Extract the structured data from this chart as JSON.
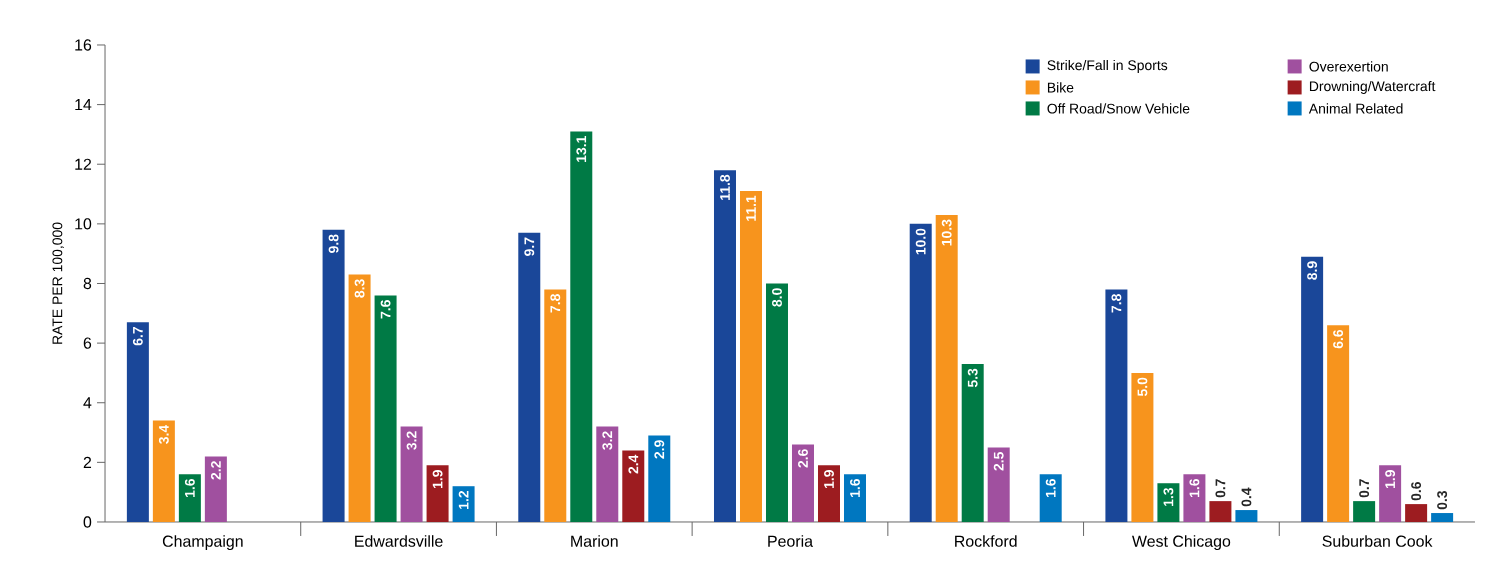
{
  "chart_data": {
    "type": "bar",
    "ylabel": "RATE PER 100,000",
    "categories": [
      "Champaign",
      "Edwardsville",
      "Marion",
      "Peoria",
      "Rockford",
      "West Chicago",
      "Suburban Cook"
    ],
    "series": [
      {
        "name": "Strike/Fall in Sports",
        "color": "#1a4799",
        "values": [
          6.7,
          9.8,
          9.7,
          11.8,
          10.0,
          7.8,
          8.9
        ],
        "value_labels": [
          "6.7",
          "9.8",
          "9.7",
          "11.8",
          "10.0",
          "7.8",
          "8.9"
        ]
      },
      {
        "name": "Bike",
        "color": "#f7941d",
        "values": [
          3.4,
          8.3,
          7.8,
          11.1,
          10.3,
          5.0,
          6.6
        ],
        "value_labels": [
          "3.4",
          "8.3",
          "7.8",
          "11.1",
          "10.3",
          "5.0",
          "6.6"
        ]
      },
      {
        "name": "Off Road/Snow Vehicle",
        "color": "#007a45",
        "values": [
          1.6,
          7.6,
          13.1,
          8.0,
          5.3,
          1.3,
          0.7
        ],
        "value_labels": [
          "1.6",
          "7.6",
          "13.1",
          "8.0",
          "5.3",
          "1.3",
          "0.7"
        ]
      },
      {
        "name": "Overexertion",
        "color": "#a0509f",
        "values": [
          2.2,
          3.2,
          3.2,
          2.6,
          2.5,
          1.6,
          1.9
        ],
        "value_labels": [
          "2.2",
          "3.2",
          "3.2",
          "2.6",
          "2.5",
          "1.6",
          "1.9"
        ]
      },
      {
        "name": "Drowning/Watercraft",
        "color": "#9d1c20",
        "values": [
          0,
          1.9,
          2.4,
          1.9,
          0,
          0.7,
          0.6
        ],
        "value_labels": [
          null,
          "1.9",
          "2.4",
          "1.9",
          null,
          "0.7",
          "0.6"
        ]
      },
      {
        "name": "Animal Related",
        "color": "#0077c0",
        "values": [
          0,
          1.2,
          2.9,
          1.6,
          1.6,
          0.4,
          0.3
        ],
        "value_labels": [
          null,
          "1.2",
          "2.9",
          "1.6",
          "1.6",
          "0.4",
          "0.3"
        ]
      }
    ],
    "ylim": [
      0,
      16
    ],
    "yticks": [
      0,
      2,
      4,
      6,
      8,
      10,
      12,
      14,
      16
    ],
    "grid": false,
    "legend": "top right"
  }
}
